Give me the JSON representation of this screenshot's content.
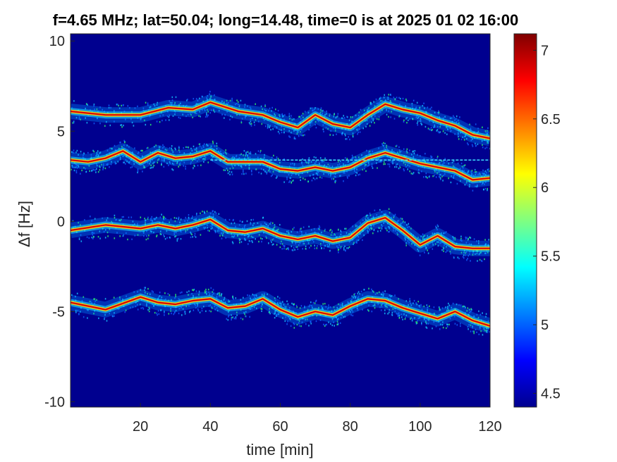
{
  "chart_data": {
    "type": "heatmap",
    "title": "f=4.65 MHz;  lat=50.04; long=14.48, time=0 is at 2025 01 02 16:00",
    "xlabel": "time [min]",
    "ylabel": "Δf [Hz]",
    "xlim": [
      0,
      120
    ],
    "ylim": [
      -10.3,
      10.4
    ],
    "xticks": [
      "20",
      "40",
      "60",
      "80",
      "100",
      "120"
    ],
    "yticks": [
      "10",
      "5",
      "0",
      "-5",
      "-10"
    ],
    "colorbar": {
      "min": 4.4,
      "max": 7.12,
      "ticks": [
        "7",
        "6.5",
        "6",
        "5.5",
        "5",
        "4.5"
      ],
      "colormap": "jet"
    },
    "background_color": "#00008f",
    "grid": false,
    "series": [
      {
        "x": [
          0,
          10,
          20,
          28,
          35,
          40,
          48,
          55,
          60,
          65,
          70,
          75,
          80,
          85,
          90,
          95,
          100,
          105,
          110,
          115,
          120
        ],
        "y": [
          6.1,
          5.9,
          5.9,
          6.3,
          6.2,
          6.6,
          6.1,
          5.9,
          5.5,
          5.2,
          5.9,
          5.4,
          5.2,
          5.9,
          6.5,
          6.2,
          6.0,
          5.6,
          5.3,
          4.8,
          4.6
        ]
      },
      {
        "x": [
          0,
          5,
          10,
          15,
          20,
          25,
          30,
          35,
          40,
          45,
          50,
          55,
          60,
          65,
          70,
          75,
          80,
          85,
          90,
          95,
          100,
          105,
          110,
          115,
          120
        ],
        "y": [
          3.4,
          3.3,
          3.5,
          3.9,
          3.3,
          3.8,
          3.5,
          3.6,
          3.9,
          3.3,
          3.3,
          3.3,
          2.9,
          2.8,
          3.0,
          2.8,
          3.0,
          3.5,
          3.8,
          3.5,
          3.2,
          3.0,
          2.8,
          2.3,
          2.4
        ]
      },
      {
        "x": [
          0,
          10,
          20,
          25,
          30,
          35,
          40,
          45,
          50,
          55,
          60,
          65,
          70,
          75,
          80,
          85,
          90,
          95,
          100,
          105,
          110,
          115,
          120
        ],
        "y": [
          -0.5,
          -0.2,
          -0.4,
          -0.2,
          -0.4,
          -0.2,
          0.1,
          -0.5,
          -0.6,
          -0.4,
          -0.8,
          -1.0,
          -0.8,
          -1.1,
          -0.9,
          -0.1,
          0.2,
          -0.5,
          -1.3,
          -0.8,
          -1.4,
          -1.5,
          -1.5
        ]
      },
      {
        "x": [
          0,
          10,
          20,
          25,
          30,
          35,
          40,
          45,
          50,
          55,
          60,
          65,
          70,
          75,
          80,
          85,
          90,
          95,
          100,
          105,
          110,
          115,
          120
        ],
        "y": [
          -4.5,
          -4.9,
          -4.2,
          -4.5,
          -4.6,
          -4.4,
          -4.3,
          -4.8,
          -4.7,
          -4.3,
          -4.9,
          -5.3,
          -5.0,
          -5.2,
          -4.7,
          -4.3,
          -4.4,
          -4.8,
          -5.1,
          -5.4,
          -5.0,
          -5.5,
          -5.8
        ]
      }
    ],
    "constant_line": {
      "y": 3.4,
      "x_start": 40,
      "x_end": 120
    }
  }
}
